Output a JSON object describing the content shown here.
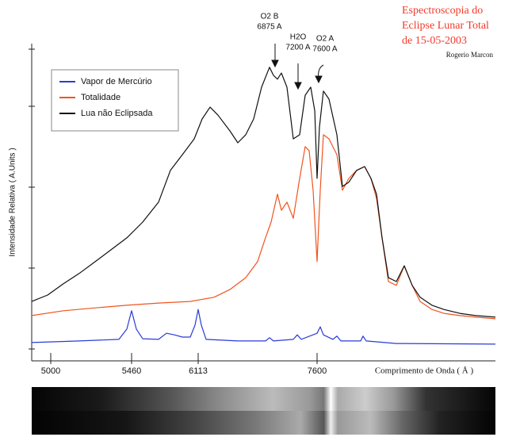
{
  "chart_data": {
    "type": "line",
    "title": [
      "Espectroscopia do",
      "Eclipse Lunar Total",
      "de 15-05-2003"
    ],
    "author": "Rogerio Marcon",
    "x_label": "Comprimento de Onda ( Å )",
    "y_label": "Intensidade Relativa ( A.Units )",
    "xlim": [
      4890,
      9830
    ],
    "xticks": [
      5000,
      5460,
      6113,
      7600
    ],
    "ylim": [
      0,
      100
    ],
    "legend": "upper left",
    "annotations": [
      [
        "O2 B",
        "6875 A"
      ],
      [
        "H2O",
        "7200 A"
      ],
      [
        "O2 A",
        "7600 A"
      ]
    ],
    "series": [
      {
        "name": "Vapor de Mercúrio",
        "color": "#2a3bd6",
        "x": [
          4890,
          5162,
          5388,
          5433,
          5460,
          5507,
          5569,
          5724,
          5802,
          5879,
          5958,
          6035,
          6082,
          6113,
          6153,
          6212,
          6609,
          6956,
          7005,
          7055,
          7303,
          7352,
          7402,
          7600,
          7640,
          7679,
          7798,
          7848,
          7897,
          8145,
          8175,
          8214,
          8591,
          9830
        ],
        "values": [
          5.7,
          6.2,
          6.7,
          9.9,
          15.6,
          9.9,
          6.9,
          6.7,
          8.6,
          8.1,
          7.4,
          7.4,
          11.1,
          16.0,
          11.1,
          6.7,
          6.2,
          6.2,
          7.2,
          6.2,
          6.7,
          8.1,
          6.7,
          8.6,
          10.6,
          8.1,
          6.7,
          7.7,
          6.2,
          6.2,
          7.7,
          6.2,
          5.4,
          5.2
        ]
      },
      {
        "name": "Totalidade",
        "color": "#f0541e",
        "x": [
          4890,
          5072,
          5253,
          5433,
          5724,
          6035,
          6311,
          6510,
          6708,
          6856,
          6955,
          7025,
          7104,
          7154,
          7223,
          7303,
          7382,
          7451,
          7501,
          7550,
          7600,
          7640,
          7679,
          7749,
          7848,
          7917,
          7996,
          8095,
          8195,
          8274,
          8343,
          8413,
          8492,
          8591,
          8690,
          8789,
          8888,
          9037,
          9186,
          9384,
          9582,
          9830
        ],
        "values": [
          14.1,
          15.6,
          16.5,
          17.3,
          18.0,
          18.5,
          19.8,
          22.2,
          25.9,
          30.9,
          38.3,
          43.2,
          51.9,
          46.9,
          49.4,
          44.4,
          56.8,
          66.7,
          65.4,
          53.1,
          30.9,
          53.1,
          70.4,
          69.1,
          64.2,
          53.1,
          56.8,
          59.3,
          60.5,
          56.8,
          50.6,
          38.3,
          24.7,
          23.5,
          29.6,
          23.5,
          18.5,
          16.0,
          14.8,
          14.1,
          13.6,
          13.1
        ]
      },
      {
        "name": "Lua não Eclipsada",
        "color": "#111111",
        "x": [
          4890,
          4982,
          5072,
          5162,
          5253,
          5343,
          5433,
          5569,
          5724,
          5841,
          5958,
          6074,
          6163,
          6262,
          6361,
          6510,
          6609,
          6708,
          6807,
          6906,
          7005,
          7055,
          7104,
          7154,
          7223,
          7303,
          7382,
          7451,
          7521,
          7571,
          7600,
          7630,
          7679,
          7749,
          7848,
          7917,
          7996,
          8095,
          8195,
          8274,
          8343,
          8413,
          8492,
          8591,
          8690,
          8789,
          8888,
          9037,
          9186,
          9384,
          9582,
          9830
        ],
        "values": [
          18.5,
          20.5,
          24.0,
          27.2,
          30.9,
          34.6,
          38.3,
          43.2,
          49.4,
          59.3,
          64.2,
          69.1,
          75.3,
          79.0,
          76.5,
          71.6,
          67.9,
          70.4,
          75.3,
          85.2,
          91.4,
          88.9,
          87.7,
          89.6,
          85.2,
          69.1,
          70.4,
          82.7,
          85.2,
          77.8,
          56.8,
          72.8,
          84.0,
          81.5,
          70.4,
          54.3,
          55.6,
          59.3,
          60.5,
          56.8,
          51.9,
          38.3,
          25.9,
          24.7,
          29.6,
          23.5,
          19.8,
          17.3,
          16.0,
          14.8,
          14.1,
          13.6
        ]
      }
    ]
  }
}
